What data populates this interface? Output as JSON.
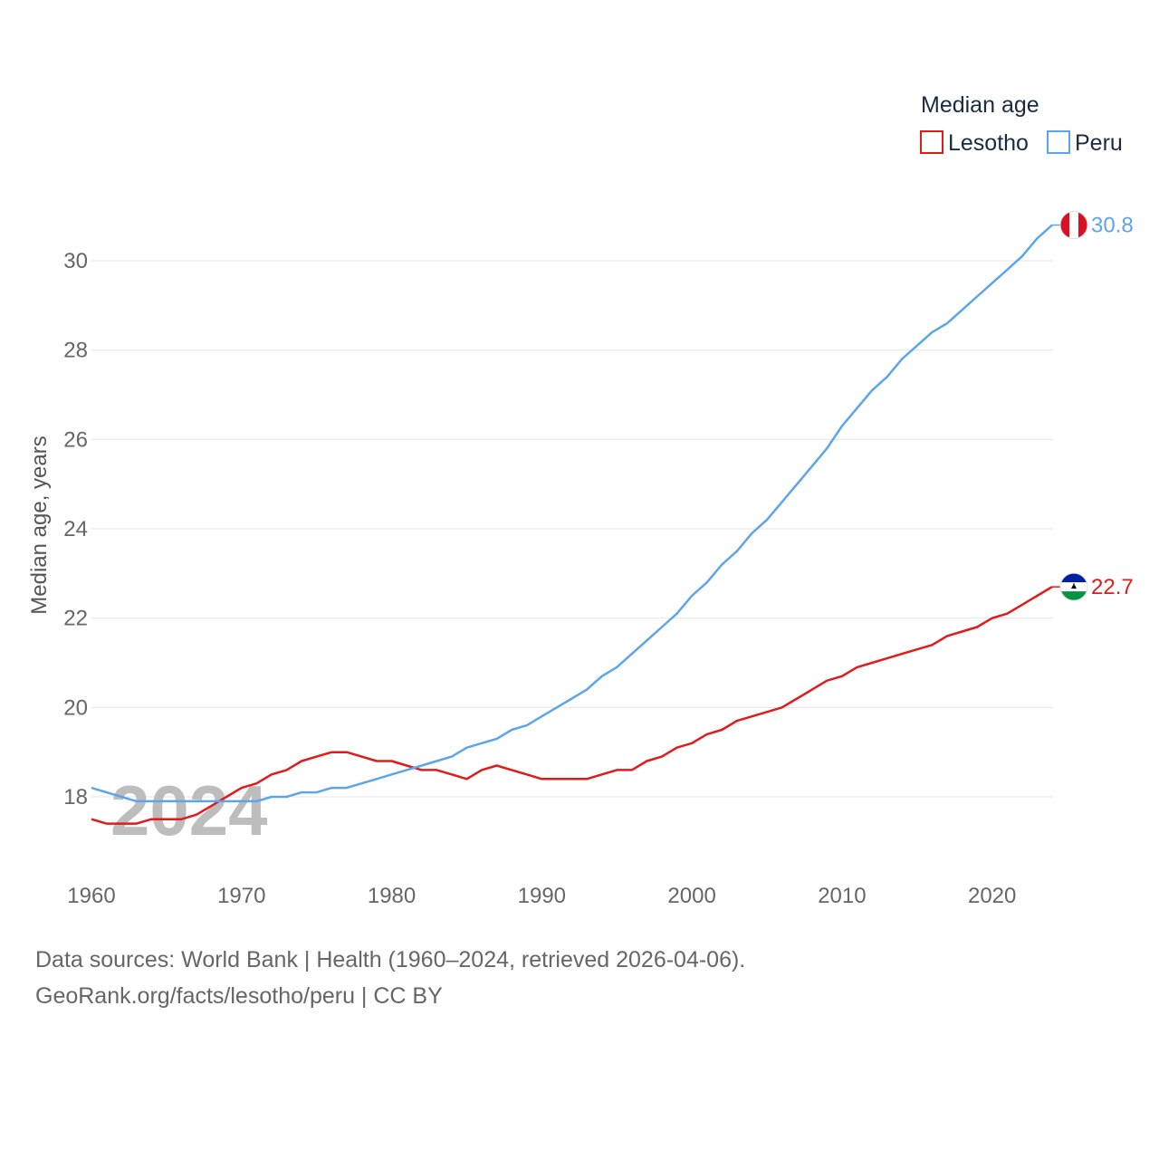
{
  "chart_data": {
    "type": "line",
    "title": "Median age",
    "ylabel": "Median age, years",
    "xlabel": "",
    "xlim": [
      1960,
      2024
    ],
    "ylim": [
      16.6,
      31.4
    ],
    "x_ticks": [
      1960,
      1970,
      1980,
      1990,
      2000,
      2010,
      2020
    ],
    "y_ticks": [
      18,
      20,
      22,
      24,
      26,
      28,
      30
    ],
    "grid": true,
    "legend_position": "top-right",
    "watermark_year": "2024",
    "years": [
      1960,
      1961,
      1962,
      1963,
      1964,
      1965,
      1966,
      1967,
      1968,
      1969,
      1970,
      1971,
      1972,
      1973,
      1974,
      1975,
      1976,
      1977,
      1978,
      1979,
      1980,
      1981,
      1982,
      1983,
      1984,
      1985,
      1986,
      1987,
      1988,
      1989,
      1990,
      1991,
      1992,
      1993,
      1994,
      1995,
      1996,
      1997,
      1998,
      1999,
      2000,
      2001,
      2002,
      2003,
      2004,
      2005,
      2006,
      2007,
      2008,
      2009,
      2010,
      2011,
      2012,
      2013,
      2014,
      2015,
      2016,
      2017,
      2018,
      2019,
      2020,
      2021,
      2022,
      2023,
      2024
    ],
    "series": [
      {
        "name": "Lesotho",
        "color": "#e31a1c",
        "end_label": "22.7",
        "flag": "lesotho-flag-icon",
        "values": [
          17.5,
          17.4,
          17.4,
          17.4,
          17.5,
          17.5,
          17.5,
          17.6,
          17.8,
          18.0,
          18.2,
          18.3,
          18.5,
          18.6,
          18.8,
          18.9,
          19.0,
          19.0,
          18.9,
          18.8,
          18.8,
          18.7,
          18.6,
          18.6,
          18.5,
          18.4,
          18.6,
          18.7,
          18.6,
          18.5,
          18.4,
          18.4,
          18.4,
          18.4,
          18.5,
          18.6,
          18.6,
          18.8,
          18.9,
          19.1,
          19.2,
          19.4,
          19.5,
          19.7,
          19.8,
          19.9,
          20.0,
          20.2,
          20.4,
          20.6,
          20.7,
          20.9,
          21.0,
          21.1,
          21.2,
          21.3,
          21.4,
          21.6,
          21.7,
          21.8,
          22.0,
          22.1,
          22.3,
          22.5,
          22.7
        ]
      },
      {
        "name": "Peru",
        "color": "#5da5e8",
        "end_label": "30.8",
        "flag": "peru-flag-icon",
        "values": [
          18.2,
          18.1,
          18.0,
          17.9,
          17.9,
          17.9,
          17.9,
          17.9,
          17.9,
          17.9,
          17.9,
          17.9,
          18.0,
          18.0,
          18.1,
          18.1,
          18.2,
          18.2,
          18.3,
          18.4,
          18.5,
          18.6,
          18.7,
          18.8,
          18.9,
          19.1,
          19.2,
          19.3,
          19.5,
          19.6,
          19.8,
          20.0,
          20.2,
          20.4,
          20.7,
          20.9,
          21.2,
          21.5,
          21.8,
          22.1,
          22.5,
          22.8,
          23.2,
          23.5,
          23.9,
          24.2,
          24.6,
          25.0,
          25.4,
          25.8,
          26.3,
          26.7,
          27.1,
          27.4,
          27.8,
          28.1,
          28.4,
          28.6,
          28.9,
          29.2,
          29.5,
          29.8,
          30.1,
          30.5,
          30.8
        ]
      }
    ]
  },
  "source": {
    "line1": "Data sources: World Bank | Health (1960–2024, retrieved 2026-04-06).",
    "line2": "GeoRank.org/facts/lesotho/peru | CC BY"
  }
}
